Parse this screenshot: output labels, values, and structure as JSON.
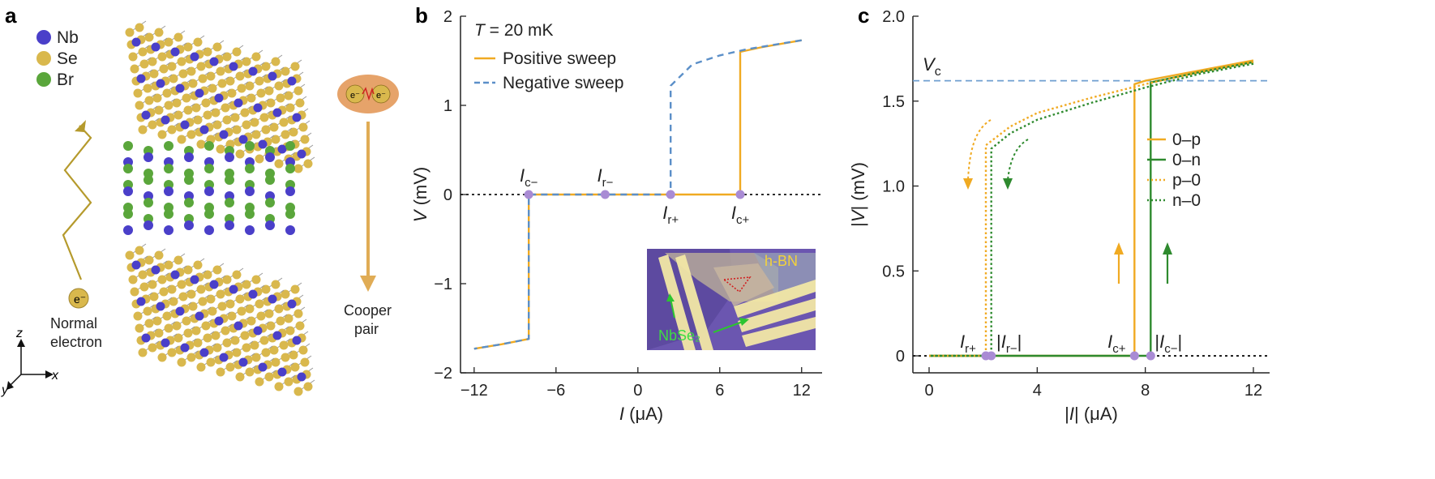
{
  "figure": {
    "colors": {
      "orange": "#f0aa22",
      "blue": "#5b8fc8",
      "green": "#2e8a2e",
      "marker": "#a98bd4",
      "nb": "#4a3fc9",
      "se": "#d9b84d",
      "br": "#5aa63b",
      "inset_bg": "#6b56b0"
    },
    "panel_a": {
      "letter": "a",
      "legend": [
        {
          "label": "Nb",
          "color_key": "nb"
        },
        {
          "label": "Se",
          "color_key": "se"
        },
        {
          "label": "Br",
          "color_key": "br"
        }
      ],
      "normal_electron_label": [
        "Normal",
        "electron"
      ],
      "electron_symbol": "e⁻",
      "cooper_pair_label": [
        "Cooper",
        "pair"
      ],
      "axes_labels": {
        "z": "z",
        "y": "y",
        "x": "x"
      }
    },
    "panel_b": {
      "letter": "b",
      "temperature": {
        "prefix": "T",
        "rest": " = 20 mK"
      },
      "legend": [
        "Positive sweep",
        "Negative sweep"
      ],
      "inset": {
        "label_hbn": "h-BN",
        "label_nbse2": "NbSe₂"
      }
    },
    "panel_c": {
      "letter": "c",
      "vc_label": "V",
      "vc_sub": "c",
      "legend": [
        "0–p",
        "0–n",
        "p–0",
        "n–0"
      ]
    }
  },
  "chart_data": [
    {
      "type": "line",
      "panel": "b",
      "title": "",
      "xlabel": "I (μA)",
      "ylabel": "V (mV)",
      "xlim": [
        -13,
        13.5
      ],
      "ylim": [
        -2,
        2
      ],
      "xticks": [
        -12,
        -6,
        0,
        6,
        12
      ],
      "xtick_labels": [
        "−12",
        "−6",
        "0",
        "6",
        "12"
      ],
      "yticks": [
        -2,
        -1,
        0,
        1,
        2
      ],
      "ytick_labels": [
        "−2",
        "−1",
        "0",
        "1",
        "2"
      ],
      "critical_currents": {
        "Ic-": -8.0,
        "Ir-": -2.4,
        "Ir+": 2.4,
        "Ic+": 7.5
      },
      "annotations": [
        {
          "label": "I",
          "sub": "c−",
          "x": -8.0,
          "y": 0
        },
        {
          "label": "I",
          "sub": "r−",
          "x": -2.4,
          "y": 0
        },
        {
          "label": "I",
          "sub": "r+",
          "x": 2.4,
          "y": 0
        },
        {
          "label": "I",
          "sub": "c+",
          "x": 7.5,
          "y": 0
        }
      ],
      "series": [
        {
          "name": "Positive sweep",
          "style": "solid",
          "color_key": "orange",
          "x": [
            -12,
            -10,
            -8,
            -8,
            -6,
            -4,
            -2.4,
            -2.4,
            0,
            2.4,
            4,
            6,
            7.5,
            7.5,
            9,
            10.5,
            12
          ],
          "y": [
            -1.73,
            -1.68,
            -1.62,
            0,
            0,
            0,
            0,
            0,
            0,
            0,
            0,
            0,
            0,
            1.6,
            1.65,
            1.69,
            1.73
          ]
        },
        {
          "name": "Negative sweep",
          "style": "dashed",
          "color_key": "blue",
          "x": [
            12,
            10,
            8,
            6,
            4,
            2.4,
            2.4,
            0,
            -2.4,
            -4,
            -6,
            -7,
            -8,
            -8,
            -10,
            -12
          ],
          "y": [
            1.73,
            1.68,
            1.63,
            1.56,
            1.46,
            1.22,
            0,
            0,
            0,
            0,
            0,
            0,
            0,
            -1.62,
            -1.68,
            -1.73
          ]
        }
      ],
      "reference_line": {
        "y": 0,
        "style": "dotted"
      }
    },
    {
      "type": "line",
      "panel": "c",
      "title": "",
      "xlabel": "|I| (μA)",
      "ylabel": "|V| (mV)",
      "xlim": [
        -0.6,
        12.6
      ],
      "ylim": [
        -0.1,
        2.0
      ],
      "xticks": [
        0,
        4,
        8,
        12
      ],
      "xtick_labels": [
        "0",
        "4",
        "8",
        "12"
      ],
      "yticks": [
        0,
        0.5,
        1.0,
        1.5,
        2.0
      ],
      "ytick_labels": [
        "0",
        "0.5",
        "1.0",
        "1.5",
        "2.0"
      ],
      "hline": {
        "y": 1.62,
        "label": "Vc",
        "style": "dashed"
      },
      "annotations": [
        {
          "label": "I",
          "sub": "r+",
          "x": 2.1,
          "y": 0
        },
        {
          "label": "|I",
          "sub": "r−",
          "after": "|",
          "x": 2.3,
          "y": 0
        },
        {
          "label": "I",
          "sub": "c+",
          "x": 7.6,
          "y": 0
        },
        {
          "label": "|I",
          "sub": "c−",
          "after": "|",
          "x": 8.2,
          "y": 0
        }
      ],
      "series": [
        {
          "name": "0–p",
          "style": "solid",
          "color_key": "orange",
          "x": [
            0,
            7.6,
            7.6,
            8,
            10,
            12
          ],
          "y": [
            0,
            0,
            1.6,
            1.62,
            1.68,
            1.74
          ]
        },
        {
          "name": "0–n",
          "style": "solid",
          "color_key": "green",
          "x": [
            0,
            8.2,
            8.2,
            10,
            12
          ],
          "y": [
            0,
            0,
            1.61,
            1.67,
            1.73
          ]
        },
        {
          "name": "p–0",
          "style": "dotted",
          "color_key": "orange",
          "x": [
            12,
            10,
            8,
            6,
            4,
            3,
            2.1,
            2.1,
            0
          ],
          "y": [
            1.73,
            1.67,
            1.6,
            1.52,
            1.43,
            1.35,
            1.24,
            0,
            0
          ]
        },
        {
          "name": "n–0",
          "style": "dotted",
          "color_key": "green",
          "x": [
            12,
            10,
            8,
            6,
            4,
            3,
            2.3,
            2.3,
            0
          ],
          "y": [
            1.72,
            1.66,
            1.58,
            1.49,
            1.39,
            1.31,
            1.22,
            0,
            0
          ]
        }
      ],
      "reference_line": {
        "y": 0,
        "style": "dotted"
      }
    }
  ]
}
